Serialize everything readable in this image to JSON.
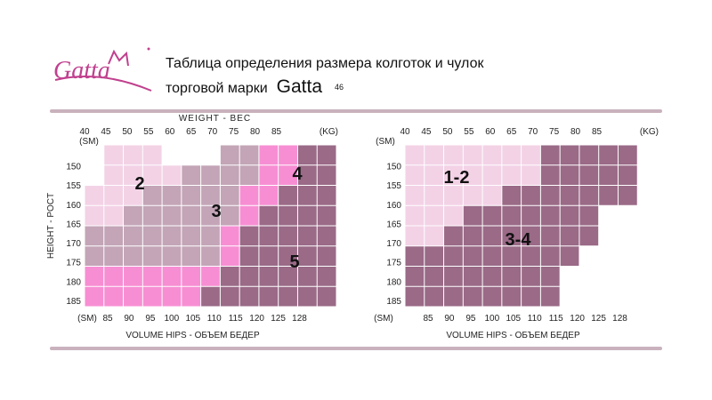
{
  "header": {
    "title_line1": "Таблица определения размера колготок и чулок",
    "title_line2": "торговой марки",
    "brand": "Gatta",
    "page_number": "46",
    "logo_text": "Gatta"
  },
  "colors": {
    "light_pink": "#f3d2e6",
    "mauve_light": "#c3a5b7",
    "mauve_mid": "#b395a9",
    "hot_pink": "#f78ed3",
    "plum": "#9a6a87",
    "grid": "#ffffff",
    "rule": "#c9b2bd",
    "logo": "#c0408e"
  },
  "chart_data": [
    {
      "type": "heatmap",
      "id": "left",
      "x_unit_top": "(KG)",
      "x_unit_bottom": "(SM)",
      "y_unit": "(SM)",
      "top_axis_title": "WEIGHT - ВЕС",
      "y_axis_title": "HEIGHT - POCT",
      "bottom_axis_title": "VOLUME HIPS - ОБЪЕМ БЕДЕР",
      "weight_ticks": [
        "40",
        "45",
        "50",
        "55",
        "60",
        "65",
        "70",
        "75",
        "80",
        "85"
      ],
      "hip_ticks": [
        "85",
        "90",
        "95",
        "100",
        "105",
        "110",
        "115",
        "120",
        "125",
        "128"
      ],
      "height_ticks": [
        "150",
        "155",
        "160",
        "165",
        "170",
        "175",
        "180",
        "185"
      ],
      "x_range": [
        40,
        90
      ],
      "y_range": [
        150,
        185
      ],
      "zones": [
        {
          "label": "2",
          "color_key": "light_pink"
        },
        {
          "label": "3",
          "color_key": "mauve_light"
        },
        {
          "label": "4",
          "color_key": "hot_pink"
        },
        {
          "label": "5",
          "color_key": "plum"
        }
      ]
    },
    {
      "type": "heatmap",
      "id": "right",
      "x_unit_top": "(KG)",
      "x_unit_bottom": "(SM)",
      "y_unit": "(SM)",
      "bottom_axis_title": "VOLUME HIPS - ОБЪЕМ БЕДЕР",
      "weight_ticks": [
        "40",
        "45",
        "50",
        "55",
        "60",
        "65",
        "70",
        "75",
        "80",
        "85"
      ],
      "hip_ticks": [
        "85",
        "90",
        "95",
        "100",
        "105",
        "110",
        "115",
        "120",
        "125",
        "128"
      ],
      "height_ticks": [
        "150",
        "155",
        "160",
        "165",
        "170",
        "175",
        "180",
        "185"
      ],
      "x_range": [
        40,
        90
      ],
      "y_range": [
        150,
        185
      ],
      "zones": [
        {
          "label": "1-2",
          "color_key": "light_pink"
        },
        {
          "label": "3-4",
          "color_key": "plum"
        }
      ]
    }
  ]
}
